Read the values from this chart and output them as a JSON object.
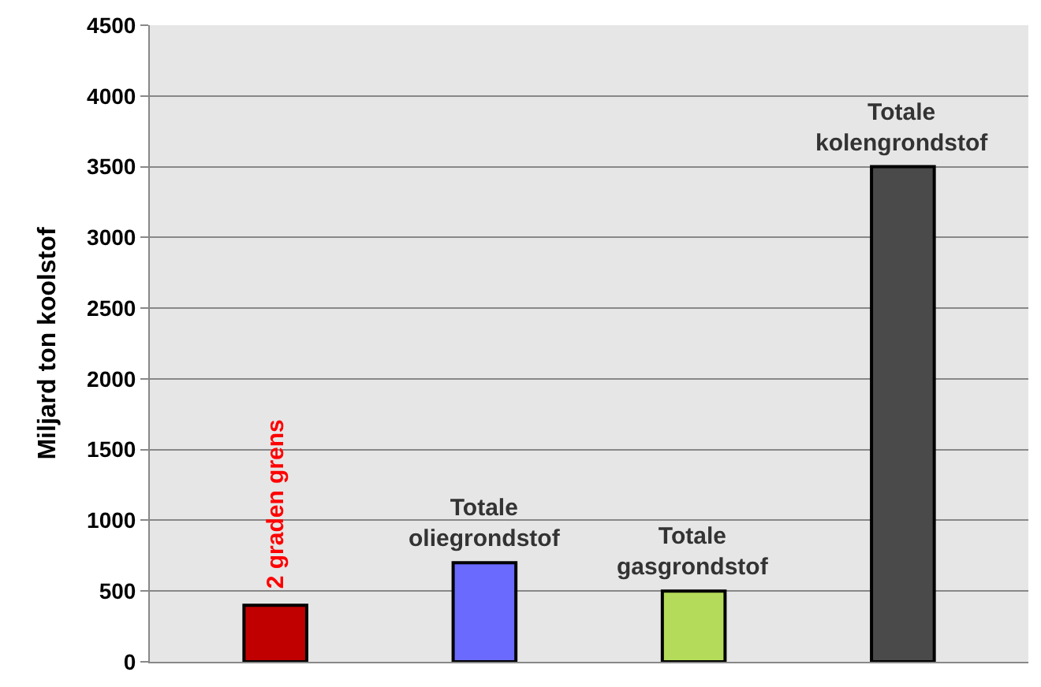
{
  "chart_data": {
    "type": "bar",
    "ylabel": "Miljard ton koolstof",
    "categories": [
      "2 graden grens",
      "Totale oliegrondstof",
      "Totale gasgrondstof",
      "Totale kolengrondstof"
    ],
    "values": [
      400,
      700,
      500,
      3500
    ],
    "colors": [
      "#c00000",
      "#6a6aff",
      "#b4dc5a",
      "#4a4a4a"
    ],
    "ylim": [
      0,
      4500
    ],
    "yticks": [
      0,
      500,
      1000,
      1500,
      2000,
      2500,
      3000,
      3500,
      4000,
      4500
    ],
    "grid": "y",
    "legend": false
  }
}
